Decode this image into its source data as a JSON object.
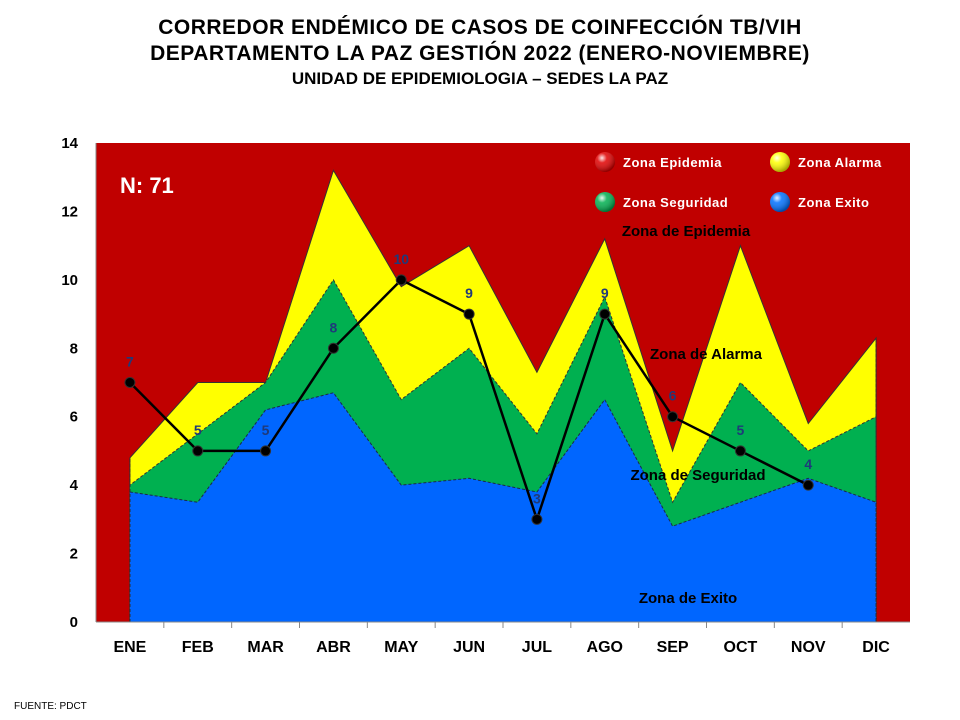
{
  "titles": {
    "line1": "CORREDOR ENDÉMICO DE CASOS DE COINFECCIÓN TB/VIH",
    "line2": "DEPARTAMENTO  LA PAZ GESTIÓN 2022 (ENERO-NOVIEMBRE)",
    "line3": "UNIDAD DE EPIDEMIOLOGIA – SEDES LA PAZ"
  },
  "footer": "FUENTE:   PDCT",
  "n_label": "N: 71",
  "zone_labels": {
    "epidemia": "Zona de Epidemia",
    "alarma": "Zona de Alarma",
    "seguridad": "Zona de Seguridad",
    "exito": "Zona de Exito"
  },
  "legend": [
    {
      "label": "Zona Epidemia",
      "color": "#e00000"
    },
    {
      "label": "Zona Alarma",
      "color": "#ffff00"
    },
    {
      "label": "Zona Seguridad",
      "color": "#00b050"
    },
    {
      "label": "Zona Exito",
      "color": "#0070ff"
    }
  ],
  "colors": {
    "epidemia": "#c00000",
    "alarma": "#ffff00",
    "seguridad": "#00b050",
    "exito": "#0066ff",
    "cases_line": "#000000",
    "case_label": "#1f3a7a"
  },
  "chart_data": {
    "type": "area",
    "categories": [
      "ENE",
      "FEB",
      "MAR",
      "ABR",
      "MAY",
      "JUN",
      "JUL",
      "AGO",
      "SEP",
      "OCT",
      "NOV",
      "DIC"
    ],
    "ylim": [
      0,
      14
    ],
    "yticks": [
      0,
      2,
      4,
      6,
      8,
      10,
      12,
      14
    ],
    "grid": false,
    "legend_position": "top-right",
    "series": [
      {
        "name": "Zona Exito",
        "values": [
          3.8,
          3.5,
          6.2,
          6.7,
          4.0,
          4.2,
          3.8,
          6.5,
          2.8,
          3.5,
          4.2,
          3.5
        ]
      },
      {
        "name": "Zona Seguridad",
        "values": [
          4.0,
          5.5,
          7.0,
          10.0,
          6.5,
          8.0,
          5.5,
          9.5,
          3.5,
          7.0,
          5.0,
          6.0
        ]
      },
      {
        "name": "Zona Alarma",
        "values": [
          4.8,
          7.0,
          7.0,
          13.2,
          9.8,
          11.0,
          7.3,
          11.2,
          5.0,
          11.0,
          5.8,
          8.3
        ]
      },
      {
        "name": "Zona Epidemia",
        "values": [
          14,
          14,
          14,
          14,
          14,
          14,
          14,
          14,
          14,
          14,
          14,
          14
        ]
      }
    ],
    "cases": {
      "values": [
        7,
        5,
        5,
        8,
        10,
        9,
        3,
        9,
        6,
        5,
        4
      ],
      "labels": [
        "7",
        "5",
        "5",
        "8",
        "10",
        "9",
        "3",
        "9",
        "6",
        "5",
        "4"
      ]
    }
  }
}
